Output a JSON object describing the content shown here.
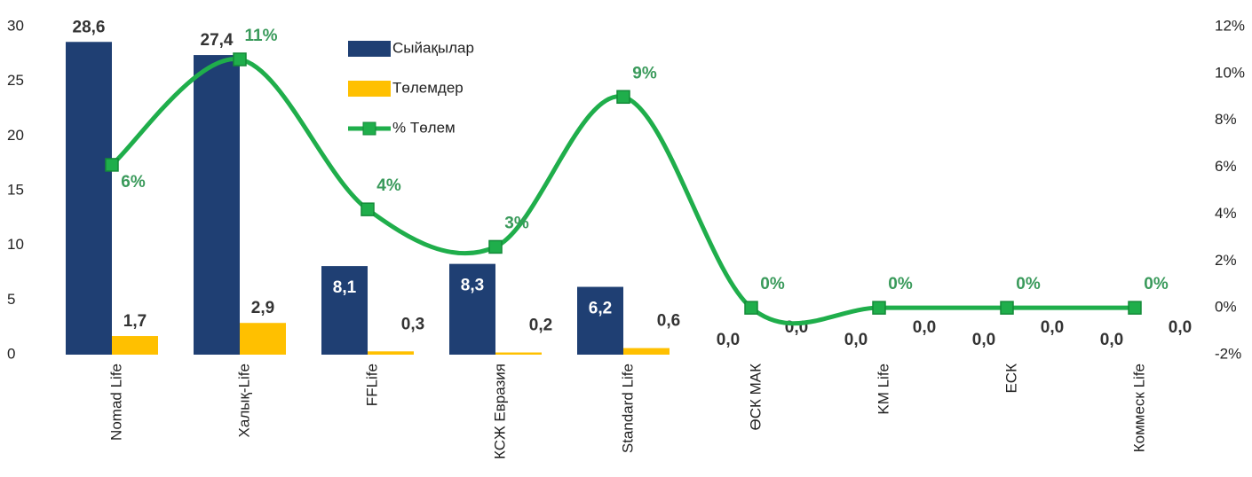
{
  "chart_data": {
    "type": "bar",
    "categories": [
      "Nomad Life",
      "Халық-Life",
      "FFLife",
      "КСЖ Евразия",
      "Standard Life",
      "ӨСК МАК",
      "KM Life",
      "ЕСК",
      "Коммеск Life"
    ],
    "series": [
      {
        "name": "Сыйақылар",
        "color": "#1f3f73",
        "values": [
          28.6,
          27.4,
          8.1,
          8.3,
          6.2,
          0,
          0,
          0,
          0
        ],
        "value_labels": [
          "28,6",
          "27,4",
          "8,1",
          "8,3",
          "6,2",
          "0,0",
          "0,0",
          "0,0",
          "0,0"
        ]
      },
      {
        "name": "Төлемдер",
        "color": "#ffc000",
        "values": [
          1.7,
          2.9,
          0.3,
          0.2,
          0.6,
          0,
          0,
          0,
          0
        ],
        "value_labels": [
          "1,7",
          "2,9",
          "0,3",
          "0,2",
          "0,6",
          "0,0",
          "0,0",
          "0,0",
          "0,0"
        ]
      },
      {
        "name": "% Төлем",
        "type": "line",
        "axis": "y2",
        "color": "#1fae4b",
        "values": [
          6.1,
          10.6,
          4.2,
          2.6,
          9.0,
          0,
          0,
          0,
          0
        ],
        "value_labels": [
          "6%",
          "11%",
          "4%",
          "3%",
          "9%",
          "0%",
          "0%",
          "0%",
          "0%"
        ]
      }
    ],
    "ylim": [
      0,
      30
    ],
    "yticks": [
      0,
      5,
      10,
      15,
      20,
      25,
      30
    ],
    "y2lim": [
      -2,
      12
    ],
    "y2ticks": [
      {
        "value": -2,
        "label": "-2%"
      },
      {
        "value": 0,
        "label": "0%"
      },
      {
        "value": 2,
        "label": "2%"
      },
      {
        "value": 4,
        "label": "4%"
      },
      {
        "value": 6,
        "label": "6%"
      },
      {
        "value": 8,
        "label": "8%"
      },
      {
        "value": 10,
        "label": "10%"
      },
      {
        "value": 12,
        "label": "12%"
      }
    ],
    "grid": false
  }
}
